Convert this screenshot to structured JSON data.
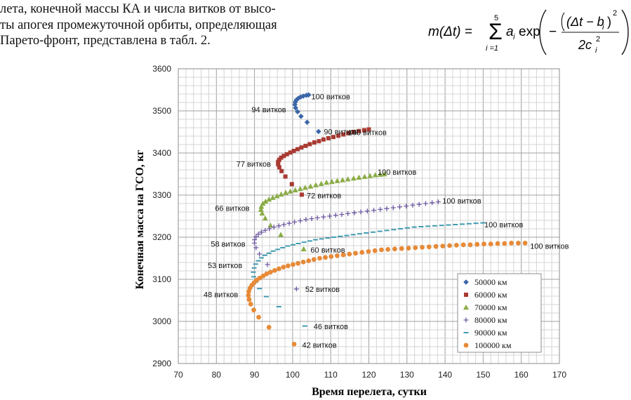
{
  "text": {
    "lines": [
      "лета, конечной массы КА и числа витков от высо-",
      "ты апогея промежуточной орбиты, определяющая",
      "Парето-фронт, представлена в табл. 2."
    ]
  },
  "formula": {
    "lhs": "m(Δt) =",
    "sum_upper": "5",
    "sum_lower": "i =1",
    "term": "a",
    "term_sub": "i",
    "exp": "exp",
    "numerator": "(Δt − b",
    "numerator_sub": "i",
    "numerator_close": ")",
    "power": "2",
    "minus": "−",
    "denominator": "2c",
    "denominator_sub": "i",
    "denominator_power": "2"
  },
  "chart_data": {
    "type": "scatter",
    "xlabel": "Время перелета, сутки",
    "ylabel": "Конечная масса на ГСО, кг",
    "xlim": [
      70,
      170
    ],
    "ylim": [
      2900,
      3600
    ],
    "xticks": [
      "70",
      "80",
      "90",
      "100",
      "110",
      "120",
      "130",
      "140",
      "150",
      "160",
      "170"
    ],
    "yticks": [
      "2900",
      "3000",
      "3100",
      "3200",
      "3300",
      "3400",
      "3500",
      "3600"
    ],
    "legend_position": "bottom-right",
    "series": [
      {
        "name": "50000 км",
        "color": "#3a66a8",
        "marker": "diamond",
        "points": [
          [
            106.8,
            3451
          ],
          [
            103.8,
            3473
          ],
          [
            102.2,
            3487
          ],
          [
            101.3,
            3498
          ],
          [
            100.8,
            3507
          ],
          [
            100.6,
            3515
          ],
          [
            100.7,
            3521
          ],
          [
            101.0,
            3526
          ],
          [
            101.5,
            3530
          ],
          [
            102.1,
            3533
          ],
          [
            102.8,
            3535
          ],
          [
            103.6,
            3537
          ],
          [
            104.2,
            3538
          ]
        ]
      },
      {
        "name": "60000 км",
        "color": "#a83a32",
        "marker": "square",
        "points": [
          [
            102.4,
            3301
          ],
          [
            99.8,
            3326
          ],
          [
            98.1,
            3344
          ],
          [
            97.1,
            3357
          ],
          [
            96.5,
            3366
          ],
          [
            96.2,
            3373
          ],
          [
            96.2,
            3379
          ],
          [
            96.5,
            3384
          ],
          [
            97.0,
            3389
          ],
          [
            97.7,
            3393
          ],
          [
            98.5,
            3397
          ],
          [
            99.4,
            3401
          ],
          [
            100.3,
            3405
          ],
          [
            101.3,
            3409
          ],
          [
            102.3,
            3413
          ],
          [
            103.4,
            3417
          ],
          [
            104.5,
            3421
          ],
          [
            105.7,
            3425
          ],
          [
            106.9,
            3428
          ],
          [
            108.1,
            3432
          ],
          [
            109.4,
            3435
          ],
          [
            110.7,
            3438
          ],
          [
            112.0,
            3441
          ],
          [
            113.3,
            3444
          ],
          [
            114.6,
            3447
          ],
          [
            116.0,
            3450
          ],
          [
            117.4,
            3452
          ],
          [
            118.8,
            3454
          ],
          [
            120.0,
            3456
          ]
        ]
      },
      {
        "name": "70000 км",
        "color": "#8aac46",
        "marker": "triangle",
        "points": [
          [
            102.9,
            3172
          ],
          [
            96.9,
            3206
          ],
          [
            94.2,
            3228
          ],
          [
            92.8,
            3245
          ],
          [
            92.0,
            3257
          ],
          [
            91.7,
            3266
          ],
          [
            91.8,
            3273
          ],
          [
            92.2,
            3280
          ],
          [
            92.9,
            3285
          ],
          [
            93.8,
            3290
          ],
          [
            94.8,
            3294
          ],
          [
            95.9,
            3298
          ],
          [
            97.0,
            3302
          ],
          [
            98.2,
            3306
          ],
          [
            99.4,
            3309
          ],
          [
            100.7,
            3312
          ],
          [
            102.0,
            3315
          ],
          [
            103.3,
            3318
          ],
          [
            104.7,
            3321
          ],
          [
            106.1,
            3324
          ],
          [
            107.5,
            3327
          ],
          [
            108.9,
            3330
          ],
          [
            110.3,
            3332
          ],
          [
            111.7,
            3334
          ],
          [
            113.1,
            3336
          ],
          [
            114.5,
            3338
          ],
          [
            116.0,
            3340
          ],
          [
            117.4,
            3342
          ],
          [
            118.9,
            3344
          ],
          [
            120.3,
            3346
          ],
          [
            121.7,
            3348
          ],
          [
            123.0,
            3349
          ],
          [
            124.1,
            3350
          ]
        ]
      },
      {
        "name": "80000 км",
        "color": "#6e5aa2",
        "marker": "plus",
        "points": [
          [
            101.0,
            3077
          ],
          [
            93.4,
            3135
          ],
          [
            91.3,
            3160
          ],
          [
            90.4,
            3175
          ],
          [
            90.0,
            3186
          ],
          [
            90.0,
            3194
          ],
          [
            90.4,
            3201
          ],
          [
            91.0,
            3207
          ],
          [
            91.8,
            3212
          ],
          [
            92.8,
            3216
          ],
          [
            93.9,
            3220
          ],
          [
            95.1,
            3224
          ],
          [
            96.4,
            3227
          ],
          [
            97.7,
            3230
          ],
          [
            99.1,
            3233
          ],
          [
            100.5,
            3236
          ],
          [
            102.0,
            3239
          ],
          [
            103.5,
            3242
          ],
          [
            105.0,
            3244
          ],
          [
            106.5,
            3246
          ],
          [
            108.1,
            3248
          ],
          [
            109.7,
            3250
          ],
          [
            111.3,
            3252
          ],
          [
            112.9,
            3254
          ],
          [
            114.5,
            3256
          ],
          [
            116.2,
            3258
          ],
          [
            117.9,
            3260
          ],
          [
            119.6,
            3262
          ],
          [
            121.3,
            3264
          ],
          [
            123.0,
            3266
          ],
          [
            124.7,
            3268
          ],
          [
            126.4,
            3270
          ],
          [
            128.1,
            3272
          ],
          [
            129.8,
            3274
          ],
          [
            131.5,
            3276
          ],
          [
            133.2,
            3278
          ],
          [
            134.9,
            3280
          ],
          [
            136.6,
            3282
          ],
          [
            138.2,
            3284
          ]
        ]
      },
      {
        "name": "90000 км",
        "color": "#3f9bb0",
        "marker": "dash",
        "points": [
          [
            103.2,
            2989
          ],
          [
            96.4,
            3035
          ],
          [
            93.1,
            3059
          ],
          [
            91.3,
            3078
          ],
          [
            90.3,
            3093
          ],
          [
            89.8,
            3106
          ],
          [
            89.7,
            3117
          ],
          [
            89.9,
            3127
          ],
          [
            90.3,
            3136
          ],
          [
            91.0,
            3144
          ],
          [
            91.8,
            3151
          ],
          [
            92.7,
            3157
          ],
          [
            93.8,
            3162
          ],
          [
            94.9,
            3167
          ],
          [
            96.1,
            3171
          ],
          [
            97.4,
            3175
          ],
          [
            98.7,
            3179
          ],
          [
            100.1,
            3182
          ],
          [
            101.5,
            3185
          ],
          [
            103.0,
            3188
          ],
          [
            104.5,
            3191
          ],
          [
            106.0,
            3194
          ],
          [
            107.6,
            3196
          ],
          [
            109.2,
            3198
          ],
          [
            110.8,
            3200
          ],
          [
            112.5,
            3202
          ],
          [
            114.2,
            3204
          ],
          [
            115.9,
            3206
          ],
          [
            117.6,
            3208
          ],
          [
            119.3,
            3210
          ],
          [
            121.1,
            3212
          ],
          [
            122.9,
            3214
          ],
          [
            124.7,
            3216
          ],
          [
            126.5,
            3218
          ],
          [
            128.3,
            3220
          ],
          [
            130.1,
            3222
          ],
          [
            131.9,
            3224
          ],
          [
            133.7,
            3225
          ],
          [
            135.5,
            3226
          ],
          [
            137.3,
            3227
          ],
          [
            139.1,
            3228
          ],
          [
            140.9,
            3229
          ],
          [
            142.7,
            3230
          ],
          [
            144.5,
            3231
          ],
          [
            146.3,
            3232
          ],
          [
            148.1,
            3233
          ],
          [
            149.9,
            3234
          ]
        ]
      },
      {
        "name": "100000 км",
        "color": "#e78a37",
        "marker": "circle",
        "points": [
          [
            100.4,
            2946
          ],
          [
            93.8,
            2986
          ],
          [
            91.1,
            3010
          ],
          [
            89.8,
            3027
          ],
          [
            89.0,
            3041
          ],
          [
            88.6,
            3052
          ],
          [
            88.4,
            3062
          ],
          [
            88.5,
            3071
          ],
          [
            88.8,
            3079
          ],
          [
            89.3,
            3086
          ],
          [
            89.9,
            3092
          ],
          [
            90.6,
            3098
          ],
          [
            91.4,
            3103
          ],
          [
            92.3,
            3108
          ],
          [
            93.2,
            3113
          ],
          [
            94.2,
            3117
          ],
          [
            95.3,
            3121
          ],
          [
            96.4,
            3125
          ],
          [
            97.6,
            3129
          ],
          [
            98.8,
            3132
          ],
          [
            100.1,
            3135
          ],
          [
            101.4,
            3138
          ],
          [
            102.8,
            3141
          ],
          [
            104.2,
            3144
          ],
          [
            105.6,
            3147
          ],
          [
            107.1,
            3150
          ],
          [
            108.6,
            3152
          ],
          [
            110.1,
            3154
          ],
          [
            111.7,
            3156
          ],
          [
            113.3,
            3158
          ],
          [
            114.9,
            3160
          ],
          [
            116.5,
            3162
          ],
          [
            118.2,
            3164
          ],
          [
            119.9,
            3166
          ],
          [
            121.6,
            3168
          ],
          [
            123.3,
            3170
          ],
          [
            125.0,
            3171
          ],
          [
            126.8,
            3172
          ],
          [
            128.6,
            3173
          ],
          [
            130.4,
            3174
          ],
          [
            132.2,
            3175
          ],
          [
            134.0,
            3176
          ],
          [
            135.8,
            3177
          ],
          [
            137.6,
            3178
          ],
          [
            139.4,
            3179
          ],
          [
            141.2,
            3180
          ],
          [
            143.0,
            3181
          ],
          [
            144.8,
            3182
          ],
          [
            146.6,
            3182
          ],
          [
            148.4,
            3183
          ],
          [
            150.2,
            3184
          ],
          [
            152.0,
            3184
          ],
          [
            153.8,
            3185
          ],
          [
            155.6,
            3185
          ],
          [
            157.4,
            3186
          ],
          [
            159.2,
            3186
          ],
          [
            161.0,
            3186
          ]
        ]
      }
    ],
    "annotations": [
      {
        "text": "100 витков",
        "x": 104.9,
        "y": 3534,
        "anchor": "start"
      },
      {
        "text": "94 витков",
        "x": 98.3,
        "y": 3503,
        "anchor": "end"
      },
      {
        "text": "90 витков",
        "x": 108.2,
        "y": 3451,
        "anchor": "start"
      },
      {
        "text": "100 витков",
        "x": 114.5,
        "y": 3449,
        "anchor": "start"
      },
      {
        "text": "77 витков",
        "x": 94.3,
        "y": 3374,
        "anchor": "end"
      },
      {
        "text": "100 витков",
        "x": 122.3,
        "y": 3355,
        "anchor": "start"
      },
      {
        "text": "72 витков",
        "x": 103.7,
        "y": 3299,
        "anchor": "start"
      },
      {
        "text": "66 витков",
        "x": 88.7,
        "y": 3269,
        "anchor": "end"
      },
      {
        "text": "100 витков",
        "x": 139.3,
        "y": 3287,
        "anchor": "start"
      },
      {
        "text": "100 витков",
        "x": 150.3,
        "y": 3230,
        "anchor": "start"
      },
      {
        "text": "58 витков",
        "x": 87.6,
        "y": 3184,
        "anchor": "end"
      },
      {
        "text": "60 витков",
        "x": 104.7,
        "y": 3170,
        "anchor": "start"
      },
      {
        "text": "100 витков",
        "x": 162.3,
        "y": 3179,
        "anchor": "start"
      },
      {
        "text": "53 витков",
        "x": 86.8,
        "y": 3133,
        "anchor": "end"
      },
      {
        "text": "52 витков",
        "x": 103.3,
        "y": 3077,
        "anchor": "start"
      },
      {
        "text": "48 витков",
        "x": 85.7,
        "y": 3064,
        "anchor": "end"
      },
      {
        "text": "46 витков",
        "x": 105.5,
        "y": 2988,
        "anchor": "start"
      },
      {
        "text": "42 витков",
        "x": 102.5,
        "y": 2944,
        "anchor": "start"
      }
    ]
  }
}
